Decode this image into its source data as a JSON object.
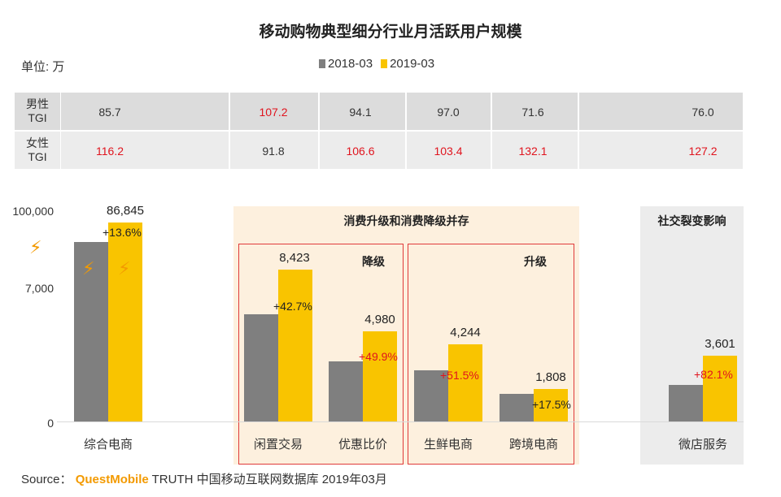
{
  "title": "移动购物典型细分行业月活跃用户规模",
  "unit_label": "单位: 万",
  "legend": [
    {
      "label": "2018-03",
      "color": "#7f7f7f"
    },
    {
      "label": "2019-03",
      "color": "#f9c400"
    }
  ],
  "tgi": {
    "male_label": "男性\nTGI",
    "female_label": "女性\nTGI",
    "male": [
      "85.7",
      "107.2",
      "94.1",
      "97.0",
      "71.6",
      "76.0"
    ],
    "female": [
      "116.2",
      "91.8",
      "106.6",
      "103.4",
      "132.1",
      "127.2"
    ],
    "male_red": [
      false,
      true,
      false,
      false,
      false,
      false
    ],
    "female_red": [
      true,
      false,
      true,
      true,
      true,
      true
    ]
  },
  "groups": {
    "consumption": "消费升级和消费降级并存",
    "downgrade": "降级",
    "upgrade": "升级",
    "social": "社交裂变影响"
  },
  "y_ticks": [
    "100,000",
    "7,000",
    "0"
  ],
  "source": {
    "prefix": "Source：",
    "brand": "QuestMobile",
    "rest": " TRUTH 中国移动互联网数据库 2019年03月"
  },
  "chart_data": {
    "type": "bar",
    "title": "移动购物典型细分行业月活跃用户规模",
    "unit": "万",
    "y_axis": "broken scale",
    "categories": [
      "综合电商",
      "闲置交易",
      "优惠比价",
      "生鲜电商",
      "跨境电商",
      "微店服务"
    ],
    "series": [
      {
        "name": "2018-03",
        "color": "#7f7f7f",
        "values": [
          null,
          null,
          null,
          null,
          null,
          null
        ]
      },
      {
        "name": "2019-03",
        "color": "#f9c400",
        "values": [
          86845,
          8423,
          4980,
          4244,
          1808,
          3601
        ]
      }
    ],
    "value_labels": [
      "86,845",
      "8,423",
      "4,980",
      "4,244",
      "1,808",
      "3,601"
    ],
    "growth_labels": [
      "+13.6%",
      "+42.7%",
      "+49.9%",
      "+51.5%",
      "+17.5%",
      "+82.1%"
    ],
    "growth_red": [
      false,
      false,
      true,
      true,
      false,
      true
    ]
  }
}
